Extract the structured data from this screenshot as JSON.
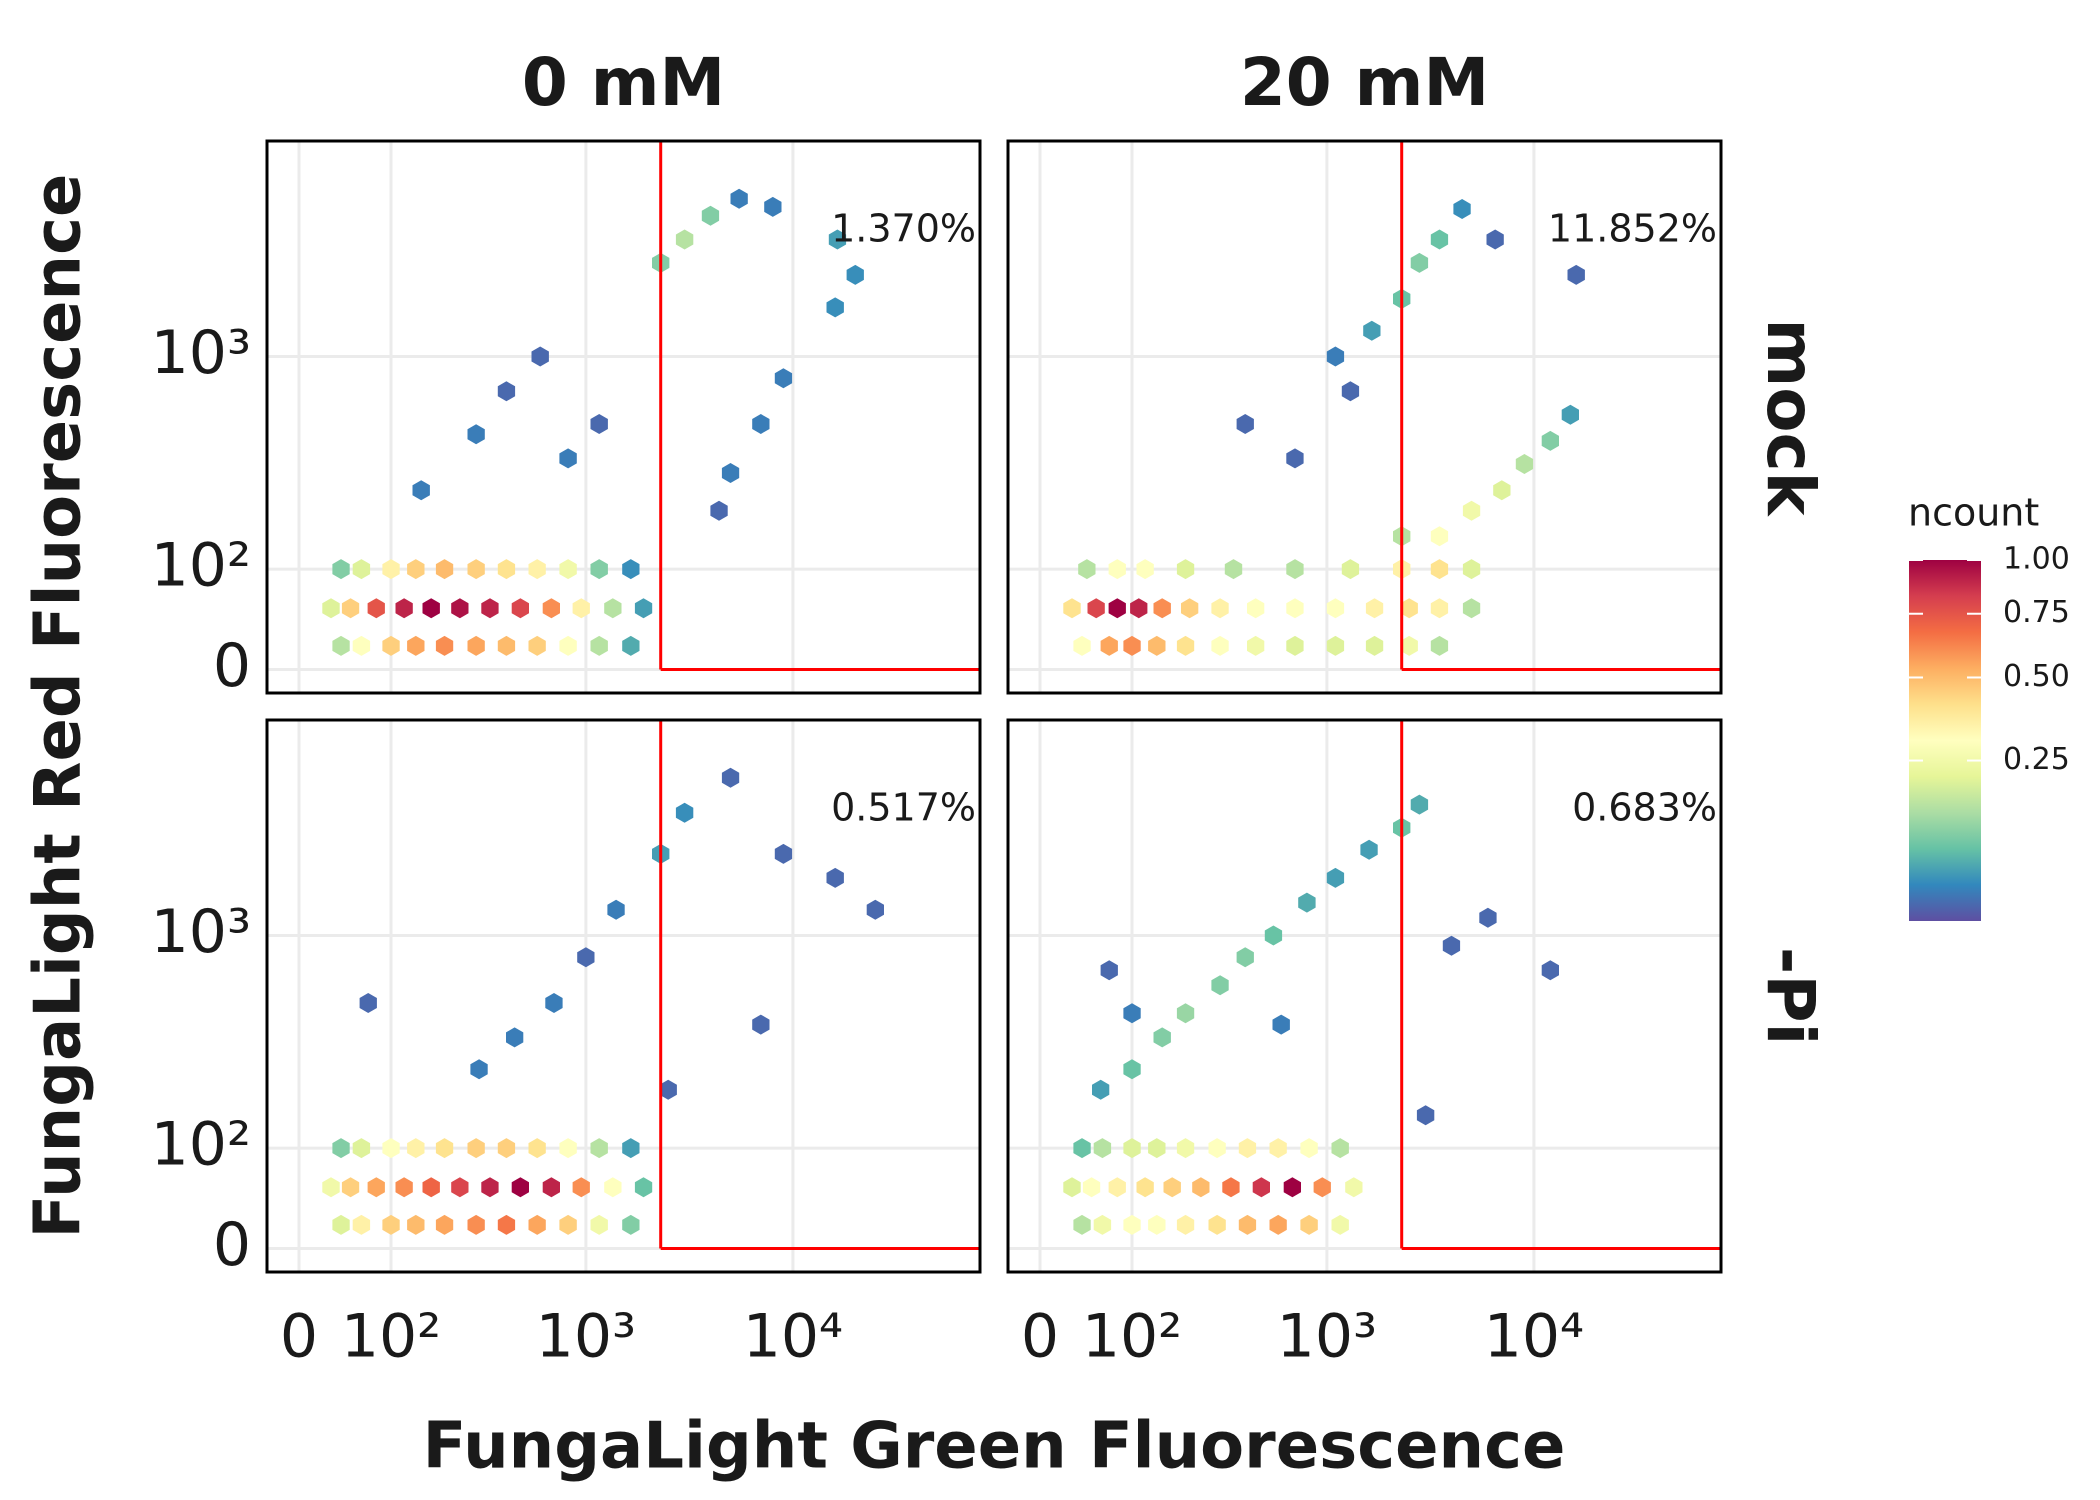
{
  "chart_data": {
    "type": "hexbin",
    "x_label": "FungaLight Green Fluorescence",
    "y_label": "FungaLight Red Fluorescence",
    "scale": "logicle",
    "xlim": [
      -30,
      80000
    ],
    "ylim": [
      -20,
      9000
    ],
    "xticks": [
      0,
      {
        "value": 100,
        "label": "10²"
      },
      {
        "value": 1000,
        "label": "10³"
      },
      {
        "value": 10000,
        "label": "10⁴"
      }
    ],
    "yticks": [
      0,
      {
        "value": 100,
        "label": "10²"
      },
      {
        "value": 1000,
        "label": "10³"
      }
    ],
    "grid": true,
    "columns": [
      "0 mM",
      "20 mM"
    ],
    "rows": [
      "mock",
      "-Pi"
    ],
    "gate": {
      "x": 2300,
      "y": 0,
      "color": "#ff0000"
    },
    "color": {
      "title": "ncount",
      "trans": "sqrt",
      "lim": [
        0.01,
        1
      ],
      "ticks": [
        {
          "value": 0.25,
          "label": "0.25"
        },
        {
          "value": 0.5,
          "label": "0.50"
        },
        {
          "value": 0.75,
          "label": "0.75"
        },
        {
          "value": 1,
          "label": "1.00"
        }
      ],
      "colors": [
        "#5e4fa2",
        "#3288bd",
        "#66c2a5",
        "#abdda4",
        "#e6f598",
        "#ffffbf",
        "#fee08b",
        "#fdae61",
        "#f46d43",
        "#d53e4f",
        "#9e0142"
      ]
    },
    "panels": [
      {
        "annotation": "1.370%",
        "x": [
          40,
          62,
          100,
          140,
          200,
          290,
          410,
          580,
          820,
          1160,
          1650,
          30,
          50,
          80,
          120,
          170,
          240,
          340,
          480,
          680,
          950,
          1350,
          1900,
          40,
          62,
          100,
          140,
          200,
          290,
          410,
          580,
          820,
          1160,
          1650,
          150,
          290,
          410,
          600,
          820,
          1160,
          2300,
          3000,
          4000,
          5500,
          8000,
          16400,
          20000,
          16000,
          9000,
          7000,
          5000,
          4400
        ],
        "y": [
          20,
          20,
          20,
          20,
          20,
          20,
          20,
          20,
          20,
          20,
          20,
          55,
          55,
          55,
          55,
          55,
          55,
          55,
          55,
          55,
          55,
          55,
          55,
          100,
          100,
          100,
          100,
          100,
          100,
          100,
          100,
          100,
          100,
          100,
          250,
          450,
          700,
          1000,
          350,
          500,
          2600,
          3300,
          4200,
          5000,
          4600,
          3300,
          2300,
          1650,
          800,
          500,
          300,
          200
        ],
        "ncount": [
          0.15,
          0.3,
          0.45,
          0.55,
          0.6,
          0.55,
          0.5,
          0.45,
          0.3,
          0.15,
          0.06,
          0.2,
          0.45,
          0.75,
          0.9,
          1,
          0.95,
          0.9,
          0.8,
          0.6,
          0.35,
          0.15,
          0.05,
          0.1,
          0.2,
          0.35,
          0.45,
          0.5,
          0.45,
          0.4,
          0.35,
          0.25,
          0.1,
          0.04,
          0.03,
          0.03,
          0.02,
          0.02,
          0.03,
          0.02,
          0.1,
          0.15,
          0.1,
          0.03,
          0.03,
          0.05,
          0.04,
          0.04,
          0.03,
          0.03,
          0.03,
          0.02
        ]
      },
      {
        "annotation": "11.852%",
        "x": [
          40,
          70,
          100,
          140,
          200,
          300,
          450,
          700,
          1100,
          1700,
          2500,
          3500,
          30,
          55,
          80,
          110,
          150,
          210,
          300,
          450,
          700,
          1100,
          1700,
          2500,
          3500,
          5000,
          45,
          80,
          120,
          200,
          350,
          700,
          1300,
          2300,
          3500,
          5000,
          3500,
          5000,
          7000,
          9000,
          12000,
          15000,
          2300,
          1100,
          1650,
          2300,
          2800,
          3500,
          4500,
          6500,
          16000,
          700,
          400,
          1300
        ],
        "y": [
          20,
          20,
          20,
          20,
          20,
          20,
          20,
          20,
          20,
          20,
          20,
          20,
          55,
          55,
          55,
          55,
          55,
          55,
          55,
          55,
          55,
          55,
          55,
          55,
          55,
          55,
          100,
          100,
          100,
          100,
          100,
          100,
          100,
          100,
          100,
          100,
          150,
          200,
          250,
          330,
          420,
          550,
          150,
          1000,
          1300,
          1800,
          2600,
          3300,
          4500,
          3300,
          2300,
          350,
          500,
          700
        ],
        "ncount": [
          0.3,
          0.55,
          0.6,
          0.5,
          0.4,
          0.3,
          0.25,
          0.2,
          0.2,
          0.2,
          0.25,
          0.15,
          0.4,
          0.8,
          1,
          0.9,
          0.6,
          0.45,
          0.35,
          0.3,
          0.3,
          0.3,
          0.35,
          0.4,
          0.35,
          0.15,
          0.15,
          0.3,
          0.3,
          0.2,
          0.15,
          0.15,
          0.2,
          0.35,
          0.4,
          0.2,
          0.3,
          0.25,
          0.2,
          0.15,
          0.1,
          0.05,
          0.15,
          0.03,
          0.05,
          0.08,
          0.1,
          0.08,
          0.04,
          0.02,
          0.02,
          0.02,
          0.02,
          0.02
        ]
      },
      {
        "annotation": "0.517%",
        "x": [
          40,
          62,
          100,
          140,
          200,
          290,
          410,
          580,
          820,
          1160,
          1650,
          30,
          50,
          80,
          120,
          170,
          240,
          340,
          480,
          680,
          950,
          1350,
          1900,
          40,
          62,
          100,
          140,
          200,
          290,
          410,
          580,
          820,
          1160,
          1650,
          300,
          450,
          700,
          1000,
          1400,
          2300,
          3000,
          5000,
          9000,
          16000,
          25000,
          7000,
          2500,
          70
        ],
        "y": [
          20,
          20,
          20,
          20,
          20,
          20,
          20,
          20,
          20,
          20,
          20,
          55,
          55,
          55,
          55,
          55,
          55,
          55,
          55,
          55,
          55,
          55,
          55,
          100,
          100,
          100,
          100,
          100,
          100,
          100,
          100,
          100,
          100,
          100,
          250,
          350,
          500,
          800,
          1300,
          2300,
          3500,
          5000,
          2300,
          1800,
          1300,
          400,
          200,
          500
        ],
        "ncount": [
          0.2,
          0.35,
          0.45,
          0.5,
          0.55,
          0.6,
          0.65,
          0.55,
          0.45,
          0.25,
          0.1,
          0.25,
          0.45,
          0.55,
          0.6,
          0.7,
          0.8,
          0.9,
          1,
          0.9,
          0.6,
          0.3,
          0.08,
          0.1,
          0.2,
          0.3,
          0.35,
          0.4,
          0.45,
          0.45,
          0.4,
          0.3,
          0.15,
          0.05,
          0.03,
          0.03,
          0.03,
          0.02,
          0.03,
          0.05,
          0.04,
          0.02,
          0.02,
          0.02,
          0.02,
          0.02,
          0.02,
          0.02
        ]
      },
      {
        "annotation": "0.683%",
        "x": [
          40,
          62,
          100,
          140,
          200,
          290,
          410,
          580,
          820,
          1160,
          30,
          50,
          80,
          120,
          170,
          240,
          340,
          480,
          680,
          950,
          1350,
          40,
          62,
          100,
          140,
          200,
          290,
          410,
          580,
          820,
          1160,
          60,
          100,
          150,
          200,
          300,
          400,
          550,
          800,
          1100,
          1600,
          2300,
          2800,
          100,
          70,
          600,
          4000,
          6000,
          12000,
          3000
        ],
        "y": [
          20,
          20,
          20,
          20,
          20,
          20,
          20,
          20,
          20,
          20,
          55,
          55,
          55,
          55,
          55,
          55,
          55,
          55,
          55,
          55,
          55,
          100,
          100,
          100,
          100,
          100,
          100,
          100,
          100,
          100,
          100,
          200,
          250,
          350,
          450,
          600,
          800,
          1000,
          1400,
          1800,
          2400,
          3000,
          3800,
          450,
          700,
          400,
          900,
          1200,
          700,
          150
        ],
        "ncount": [
          0.15,
          0.25,
          0.3,
          0.3,
          0.35,
          0.4,
          0.5,
          0.55,
          0.45,
          0.25,
          0.2,
          0.3,
          0.35,
          0.4,
          0.45,
          0.5,
          0.65,
          0.85,
          1,
          0.6,
          0.25,
          0.08,
          0.15,
          0.2,
          0.2,
          0.25,
          0.3,
          0.35,
          0.35,
          0.3,
          0.15,
          0.05,
          0.08,
          0.1,
          0.12,
          0.1,
          0.1,
          0.08,
          0.06,
          0.05,
          0.05,
          0.08,
          0.06,
          0.03,
          0.02,
          0.03,
          0.02,
          0.02,
          0.02,
          0.02
        ]
      }
    ]
  }
}
